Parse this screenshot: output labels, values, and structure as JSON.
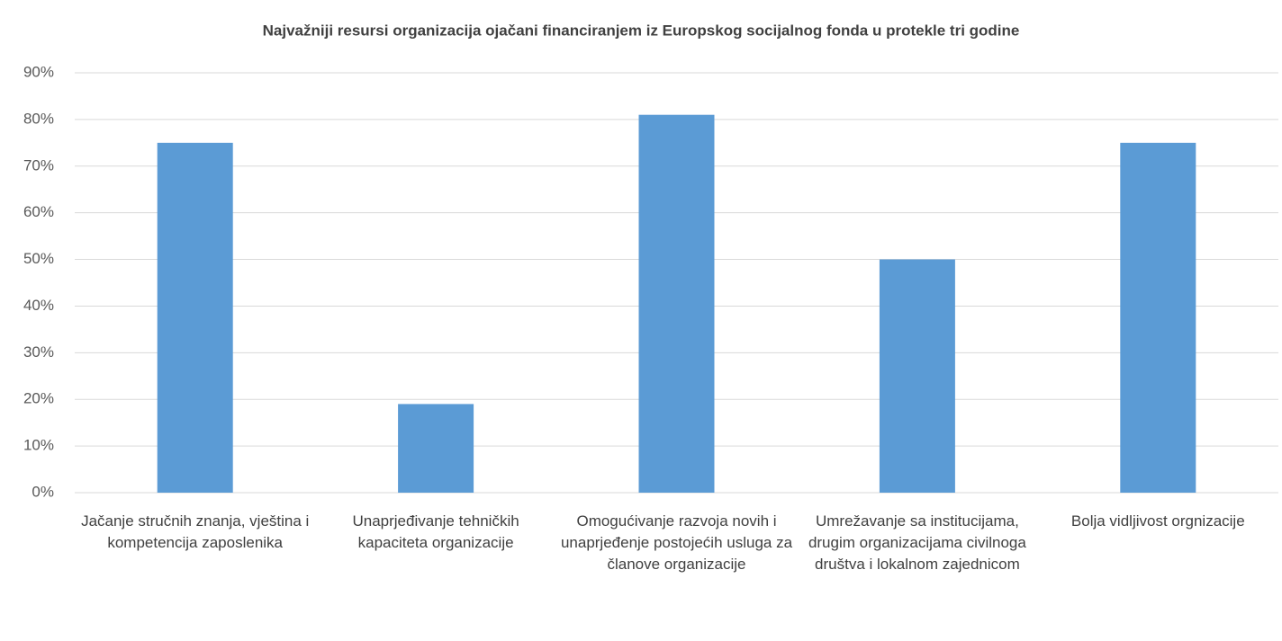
{
  "chart_data": {
    "type": "bar",
    "title": "Najvažniji resursi organizacija ojačani financiranjem iz Europskog socijalnog fonda u protekle tri godine",
    "categories": [
      "Jačanje stručnih znanja, vještina i kompetencija zaposlenika",
      "Unaprjeđivanje tehničkih kapaciteta organizacije",
      "Omogućivanje razvoja novih i unaprjeđenje postojećih usluga za članove organizacije",
      "Umrežavanje sa institucijama, drugim organizacijama civilnoga društva i lokalnom zajednicom",
      "Bolja vidljivost orgnizacije"
    ],
    "values": [
      75,
      19,
      81,
      50,
      75
    ],
    "color": "#5b9bd5",
    "ylim": [
      0,
      90
    ],
    "yticks": [
      {
        "value": 0,
        "label": "0%"
      },
      {
        "value": 10,
        "label": "10%"
      },
      {
        "value": 20,
        "label": "20%"
      },
      {
        "value": 30,
        "label": "30%"
      },
      {
        "value": 40,
        "label": "40%"
      },
      {
        "value": 50,
        "label": "50%"
      },
      {
        "value": 60,
        "label": "60%"
      },
      {
        "value": 70,
        "label": "70%"
      },
      {
        "value": 80,
        "label": "80%"
      },
      {
        "value": 90,
        "label": "90%"
      }
    ],
    "grid": true
  }
}
